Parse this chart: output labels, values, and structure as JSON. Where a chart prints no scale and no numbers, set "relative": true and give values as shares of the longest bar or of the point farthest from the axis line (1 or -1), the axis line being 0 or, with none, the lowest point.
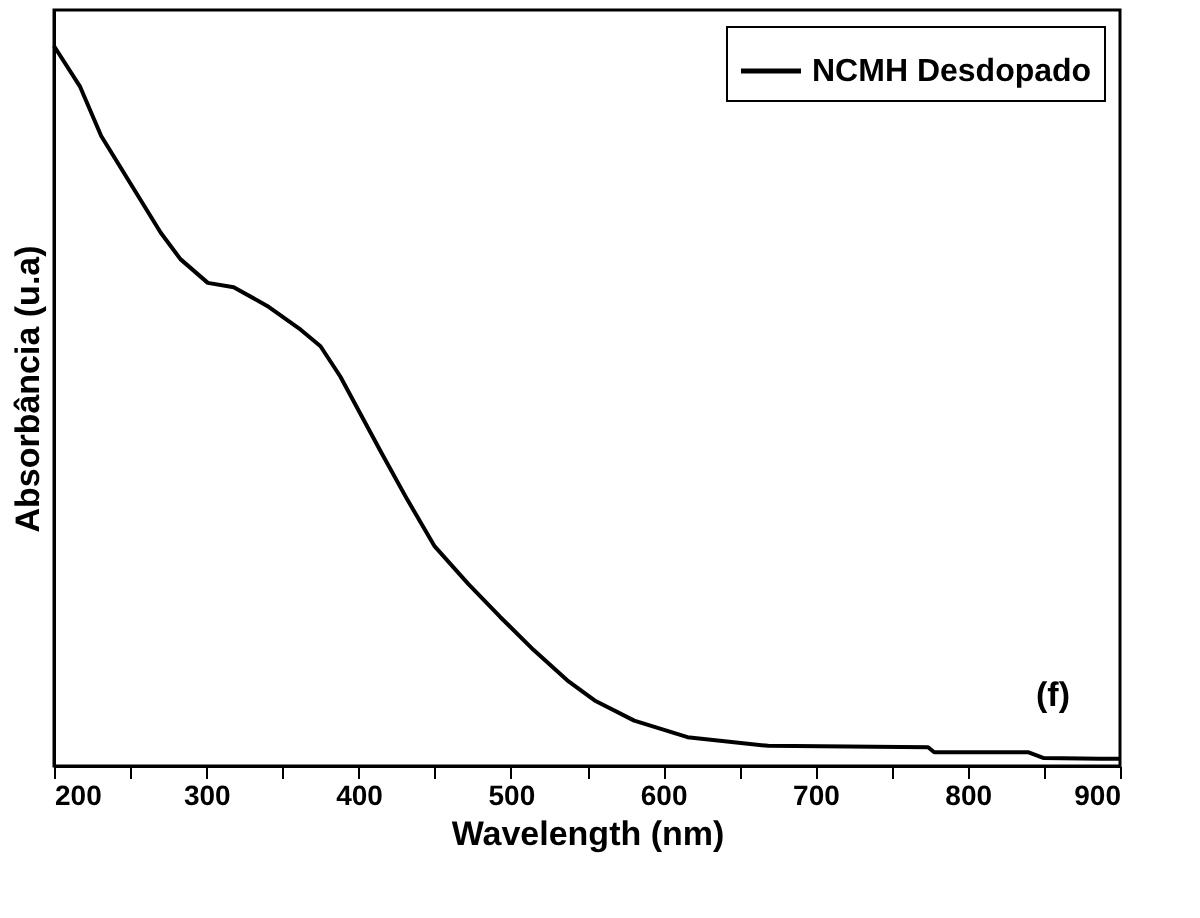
{
  "chart_data": {
    "type": "line",
    "xlabel": "Wavelength (nm)",
    "ylabel": "Absorbância (u.a)",
    "relative": true,
    "x": [
      200,
      217,
      231,
      270,
      283,
      301,
      318,
      340,
      362,
      375,
      388,
      401,
      415,
      432,
      450,
      472,
      493,
      515,
      537,
      555,
      581,
      616,
      669,
      774,
      778,
      840,
      850,
      887,
      900
    ],
    "series": [
      {
        "name": "NCMH Desdopado",
        "color": "#000000",
        "values": [
          1.0,
          0.944,
          0.875,
          0.741,
          0.704,
          0.671,
          0.665,
          0.639,
          0.606,
          0.583,
          0.541,
          0.49,
          0.435,
          0.37,
          0.305,
          0.253,
          0.207,
          0.161,
          0.119,
          0.091,
          0.063,
          0.04,
          0.028,
          0.026,
          0.019,
          0.019,
          0.011,
          0.01,
          0.01
        ]
      }
    ],
    "xlim": [
      200,
      900
    ],
    "xticks": [
      200,
      {
        "value": 250,
        "label": null
      },
      300,
      {
        "value": 350,
        "label": null
      },
      400,
      {
        "value": 450,
        "label": null
      },
      500,
      {
        "value": 550,
        "label": null
      },
      600,
      {
        "value": 650,
        "label": null
      },
      700,
      {
        "value": 750,
        "label": null
      },
      800,
      {
        "value": 850,
        "label": null
      },
      900
    ],
    "annotations": [
      "(f)"
    ],
    "legend": "top right",
    "grid": false,
    "line_style": "solid",
    "marker": "none"
  }
}
